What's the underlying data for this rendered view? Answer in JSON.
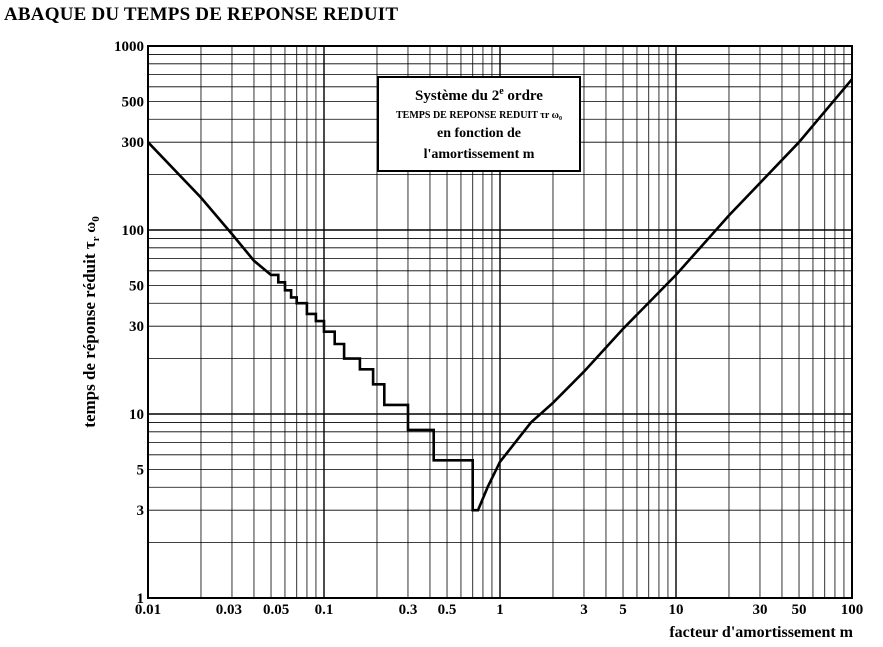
{
  "title": "ABAQUE DU TEMPS DE  REPONSE REDUIT",
  "legend": {
    "line1_pre": "Système du 2",
    "line1_sup": "e",
    "line1_post": " ordre",
    "line2": "TEMPS DE REPONSE REDUIT  τr ω₀",
    "line3": "en fonction de",
    "line4": "l'amortissement  m"
  },
  "chart_data": {
    "type": "line",
    "xscale": "log",
    "yscale": "log",
    "xlim": [
      0.01,
      100
    ],
    "ylim": [
      1,
      1000
    ],
    "grid": true,
    "xlabel": "facteur d'amortissement m",
    "ylabel": "temps de réponse réduit τr ω0",
    "xticks": [
      {
        "v": 0.01,
        "label": "0.01"
      },
      {
        "v": 0.03,
        "label": "0.03"
      },
      {
        "v": 0.05,
        "label": "0.05"
      },
      {
        "v": 0.1,
        "label": "0.1"
      },
      {
        "v": 0.3,
        "label": "0.3"
      },
      {
        "v": 0.5,
        "label": "0.5"
      },
      {
        "v": 1,
        "label": "1"
      },
      {
        "v": 3,
        "label": "3"
      },
      {
        "v": 5,
        "label": "5"
      },
      {
        "v": 10,
        "label": "10"
      },
      {
        "v": 30,
        "label": "30"
      },
      {
        "v": 50,
        "label": "50"
      },
      {
        "v": 100,
        "label": "100"
      }
    ],
    "yticks": [
      {
        "v": 1,
        "label": "1"
      },
      {
        "v": 3,
        "label": "3"
      },
      {
        "v": 5,
        "label": "5"
      },
      {
        "v": 10,
        "label": "10"
      },
      {
        "v": 30,
        "label": "30"
      },
      {
        "v": 50,
        "label": "50"
      },
      {
        "v": 100,
        "label": "100"
      },
      {
        "v": 300,
        "label": "300"
      },
      {
        "v": 500,
        "label": "500"
      },
      {
        "v": 1000,
        "label": "1000"
      }
    ],
    "series": [
      {
        "points": [
          [
            0.01,
            300
          ],
          [
            0.02,
            150
          ],
          [
            0.03,
            95
          ],
          [
            0.04,
            68
          ],
          [
            0.05,
            57
          ],
          [
            0.055,
            57
          ],
          [
            0.055,
            52
          ],
          [
            0.06,
            52
          ],
          [
            0.06,
            47
          ],
          [
            0.065,
            47
          ],
          [
            0.065,
            43
          ],
          [
            0.07,
            43
          ],
          [
            0.07,
            40
          ],
          [
            0.08,
            40
          ],
          [
            0.08,
            35
          ],
          [
            0.09,
            35
          ],
          [
            0.09,
            32
          ],
          [
            0.1,
            32
          ],
          [
            0.1,
            28
          ],
          [
            0.115,
            28
          ],
          [
            0.115,
            24
          ],
          [
            0.13,
            24
          ],
          [
            0.13,
            20
          ],
          [
            0.16,
            20
          ],
          [
            0.16,
            17.5
          ],
          [
            0.19,
            17.5
          ],
          [
            0.19,
            14.5
          ],
          [
            0.22,
            14.5
          ],
          [
            0.22,
            11.2
          ],
          [
            0.3,
            11.2
          ],
          [
            0.3,
            8.2
          ],
          [
            0.42,
            8.2
          ],
          [
            0.42,
            5.6
          ],
          [
            0.7,
            5.6
          ],
          [
            0.7,
            3.0
          ],
          [
            0.75,
            3.0
          ],
          [
            0.85,
            4.0
          ],
          [
            1.0,
            5.5
          ],
          [
            1.5,
            9.0
          ],
          [
            2,
            11.5
          ],
          [
            3,
            17
          ],
          [
            5,
            29
          ],
          [
            10,
            57
          ],
          [
            20,
            120
          ],
          [
            50,
            300
          ],
          [
            100,
            660
          ]
        ]
      }
    ]
  }
}
